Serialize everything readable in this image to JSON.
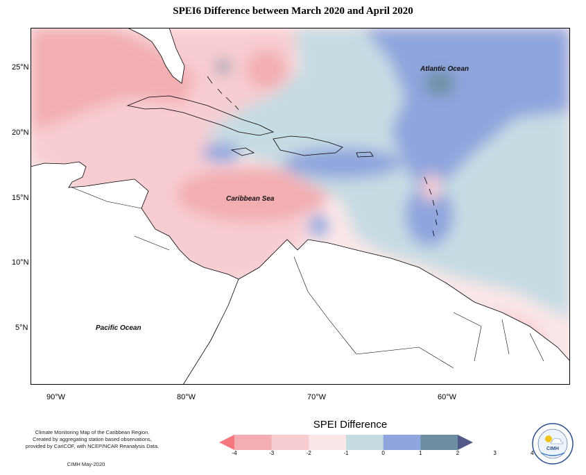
{
  "title": "SPEI6 Difference between March 2020 and April 2020",
  "axes": {
    "lat_labels": [
      "25°N",
      "20°N",
      "15°N",
      "10°N",
      "5°N"
    ],
    "lon_labels": [
      "90°W",
      "80°W",
      "70°W",
      "60°W"
    ]
  },
  "places": {
    "atlantic": "Atlantic Ocean",
    "caribbean": "Caribbean Sea",
    "pacific": "Pacific Ocean"
  },
  "legend": {
    "title": "SPEI Difference",
    "ticks": [
      "-4",
      "-3",
      "-2",
      "-1",
      "0",
      "1",
      "2",
      "3",
      "4"
    ],
    "colors": [
      "#f4777f",
      "#f2aeb3",
      "#f8cdd2",
      "#fbe7e8",
      "#c6dce3",
      "#8fa5de",
      "#6d8fa3",
      "#535a8a"
    ]
  },
  "credits": {
    "line1": "Climate Monitoring Map of the Caribbean Region.",
    "line2": "Created by aggregating station based observations,",
    "line3": "provided by CariCOF, with NCEP/NCAR Reanalysis Data.",
    "date": "CIMH May-2020"
  },
  "logo": {
    "text": "CIMH"
  }
}
